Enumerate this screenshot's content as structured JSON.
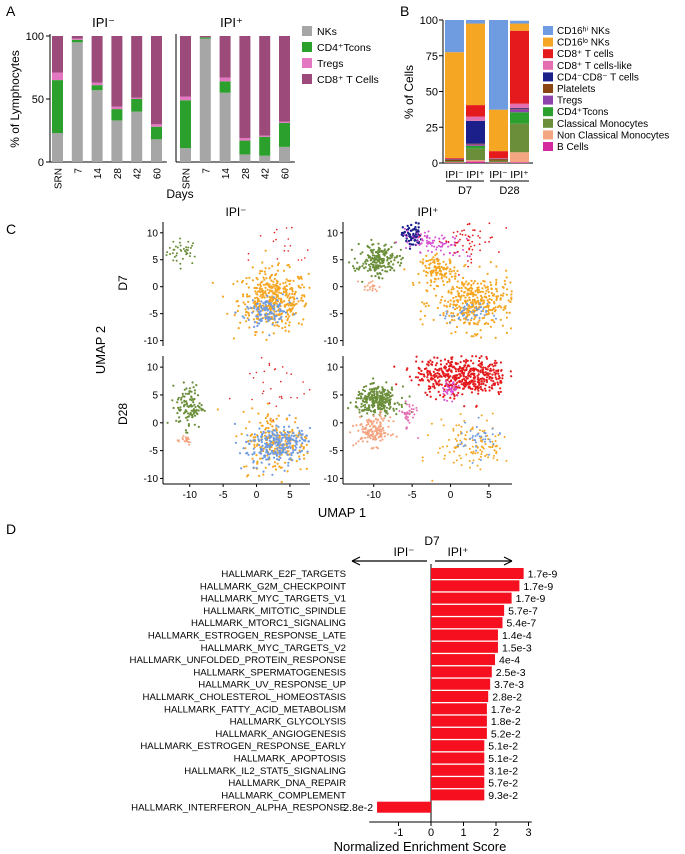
{
  "panel_labels": {
    "a": "A",
    "b": "B",
    "c": "C",
    "d": "D"
  },
  "colors": {
    "nks": "#a6a6a6",
    "cd4": "#2ca02c",
    "tregs": "#e377c2",
    "cd8": "#9b4a7a",
    "umap_orange": "#f5a623",
    "umap_blue": "#6f9be0",
    "umap_green": "#6b8e3a",
    "umap_red": "#e41a1c",
    "umap_navy": "#1b1f8a",
    "umap_magenta": "#d64fd0",
    "umap_salmon": "#f4a582",
    "umap_pink": "#e46fb0",
    "gsea_bar": "#f50f1f"
  },
  "chart_data": [
    {
      "id": "A",
      "type": "bar",
      "stacked": true,
      "ylabel": "% of Lymphocytes",
      "xlabel": "Days",
      "yticks": [
        "0",
        "50",
        "100"
      ],
      "ylim": [
        0,
        100
      ],
      "legend": [
        "NKs",
        "CD4⁺Tcons",
        "Tregs",
        "CD8⁺ T Cells"
      ],
      "groups": [
        {
          "title": "IPI⁻",
          "categories": [
            "SRN",
            "7",
            "14",
            "28",
            "42",
            "60"
          ],
          "series": [
            {
              "name": "NKs",
              "values": [
                23,
                95,
                57,
                33,
                40,
                18
              ]
            },
            {
              "name": "CD4⁺Tcons",
              "values": [
                42,
                2,
                4,
                9,
                10,
                10
              ]
            },
            {
              "name": "Tregs",
              "values": [
                6,
                1,
                2,
                2,
                1,
                2
              ]
            },
            {
              "name": "CD8⁺ T Cells",
              "values": [
                29,
                2,
                37,
                56,
                49,
                70
              ]
            }
          ]
        },
        {
          "title": "IPI⁺",
          "categories": [
            "SRN",
            "7",
            "14",
            "28",
            "42",
            "60"
          ],
          "series": [
            {
              "name": "NKs",
              "values": [
                11,
                98,
                55,
                6,
                5,
                12
              ]
            },
            {
              "name": "CD4⁺Tcons",
              "values": [
                38,
                1,
                9,
                11,
                15,
                19
              ]
            },
            {
              "name": "Tregs",
              "values": [
                3,
                0,
                3,
                2,
                1,
                1
              ]
            },
            {
              "name": "CD8⁺ T Cells",
              "values": [
                48,
                1,
                33,
                81,
                79,
                68
              ]
            }
          ]
        }
      ]
    },
    {
      "id": "B",
      "type": "bar",
      "stacked": true,
      "ylabel": "% of Cells",
      "ylim": [
        0,
        100
      ],
      "yticks": [
        "0",
        "25",
        "50",
        "75",
        "100"
      ],
      "categories": [
        "IPI⁻",
        "IPI⁺",
        "IPI⁻",
        "IPI⁺"
      ],
      "timepoints": [
        "D7",
        "D28"
      ],
      "series": [
        {
          "name": "B Cells",
          "color": "#d42aa0",
          "values": [
            0.3,
            1,
            0.3,
            0.5
          ]
        },
        {
          "name": "Non Classical Monocytes",
          "color": "#f4a582",
          "values": [
            0.4,
            1,
            0.4,
            7
          ]
        },
        {
          "name": "Classical Monocytes",
          "color": "#6b8e3a",
          "values": [
            0.7,
            8,
            1,
            20
          ]
        },
        {
          "name": "CD4⁺Tcons",
          "color": "#2ca02c",
          "values": [
            0,
            2,
            0,
            8
          ]
        },
        {
          "name": "Tregs",
          "color": "#8e44ad",
          "values": [
            0,
            1,
            0,
            2
          ]
        },
        {
          "name": "Platelets",
          "color": "#8b4513",
          "values": [
            1,
            0.5,
            1,
            0.5
          ]
        },
        {
          "name": "CD4⁻CD8⁻ T cells",
          "color": "#1b1f8a",
          "values": [
            0.3,
            16,
            0.3,
            0.5
          ]
        },
        {
          "name": "CD8⁺ T cells-like",
          "color": "#e46fb0",
          "values": [
            0.3,
            3,
            0.3,
            3
          ]
        },
        {
          "name": "CD8⁺ T cells",
          "color": "#e41a1c",
          "values": [
            0.5,
            8,
            5,
            51
          ]
        },
        {
          "name": "CD16ˡᵒ NKs",
          "color": "#f5a623",
          "values": [
            74,
            57,
            29,
            5
          ]
        },
        {
          "name": "CD16ʰⁱ NKs",
          "color": "#6f9be0",
          "values": [
            22.5,
            2.5,
            62.7,
            2
          ]
        }
      ]
    },
    {
      "id": "C",
      "type": "scatter",
      "xlabel": "UMAP 1",
      "ylabel": "UMAP 2",
      "column_titles": [
        "IPI⁻",
        "IPI⁺"
      ],
      "row_titles": [
        "D7",
        "D28"
      ],
      "xticks": [
        "-10",
        "-5",
        "0",
        "5"
      ],
      "yticks": [
        "10",
        "5",
        "0",
        "-5",
        "-10"
      ],
      "xlim": [
        -14,
        8
      ],
      "ylim": [
        -11,
        12
      ]
    },
    {
      "id": "D",
      "type": "bar",
      "orientation": "horizontal",
      "title": "D7",
      "left_label": "IPI⁻",
      "right_label": "IPI⁺",
      "xlabel": "Normalized Enrichment Score",
      "xticks": [
        "-1",
        "0",
        "1",
        "2",
        "3"
      ],
      "xlim": [
        -1.9,
        3.1
      ],
      "rows": [
        {
          "label": "HALLMARK_E2F_TARGETS",
          "nes": 2.85,
          "fdr": "1.7e-9"
        },
        {
          "label": "HALLMARK_G2M_CHECKPOINT",
          "nes": 2.72,
          "fdr": "1.7e-9"
        },
        {
          "label": "HALLMARK_MYC_TARGETS_V1",
          "nes": 2.48,
          "fdr": "1.7e-9"
        },
        {
          "label": "HALLMARK_MITOTIC_SPINDLE",
          "nes": 2.25,
          "fdr": "5.7e-7"
        },
        {
          "label": "HALLMARK_MTORC1_SIGNALING",
          "nes": 2.2,
          "fdr": "5.4e-7"
        },
        {
          "label": "HALLMARK_ESTROGEN_RESPONSE_LATE",
          "nes": 2.06,
          "fdr": "1.4e-4"
        },
        {
          "label": "HALLMARK_MYC_TARGETS_V2",
          "nes": 2.06,
          "fdr": "1.5e-3"
        },
        {
          "label": "HALLMARK_UNFOLDED_PROTEIN_RESPONSE",
          "nes": 1.97,
          "fdr": "4e-4"
        },
        {
          "label": "HALLMARK_SPERMATOGENESIS",
          "nes": 1.87,
          "fdr": "2.5e-3"
        },
        {
          "label": "HALLMARK_UV_RESPONSE_UP",
          "nes": 1.82,
          "fdr": "3.7e-3"
        },
        {
          "label": "HALLMARK_CHOLESTEROL_HOMEOSTASIS",
          "nes": 1.76,
          "fdr": "2.8e-2"
        },
        {
          "label": "HALLMARK_FATTY_ACID_METABOLISM",
          "nes": 1.72,
          "fdr": "1.7e-2"
        },
        {
          "label": "HALLMARK_GLYCOLYSIS",
          "nes": 1.72,
          "fdr": "1.8e-2"
        },
        {
          "label": "HALLMARK_ANGIOGENESIS",
          "nes": 1.72,
          "fdr": "5.2e-2"
        },
        {
          "label": "HALLMARK_ESTROGEN_RESPONSE_EARLY",
          "nes": 1.64,
          "fdr": "5.1e-2"
        },
        {
          "label": "HALLMARK_APOPTOSIS",
          "nes": 1.64,
          "fdr": "5.1e-2"
        },
        {
          "label": "HALLMARK_IL2_STAT5_SIGNALING",
          "nes": 1.64,
          "fdr": "3.1e-2"
        },
        {
          "label": "HALLMARK_DNA_REPAIR",
          "nes": 1.64,
          "fdr": "5.7e-2"
        },
        {
          "label": "HALLMARK_COMPLEMENT",
          "nes": 1.64,
          "fdr": "9.3e-2"
        },
        {
          "label": "HALLMARK_INTERFERON_ALPHA_RESPONSE",
          "nes": -1.66,
          "fdr": "2.8e-2"
        }
      ]
    }
  ]
}
